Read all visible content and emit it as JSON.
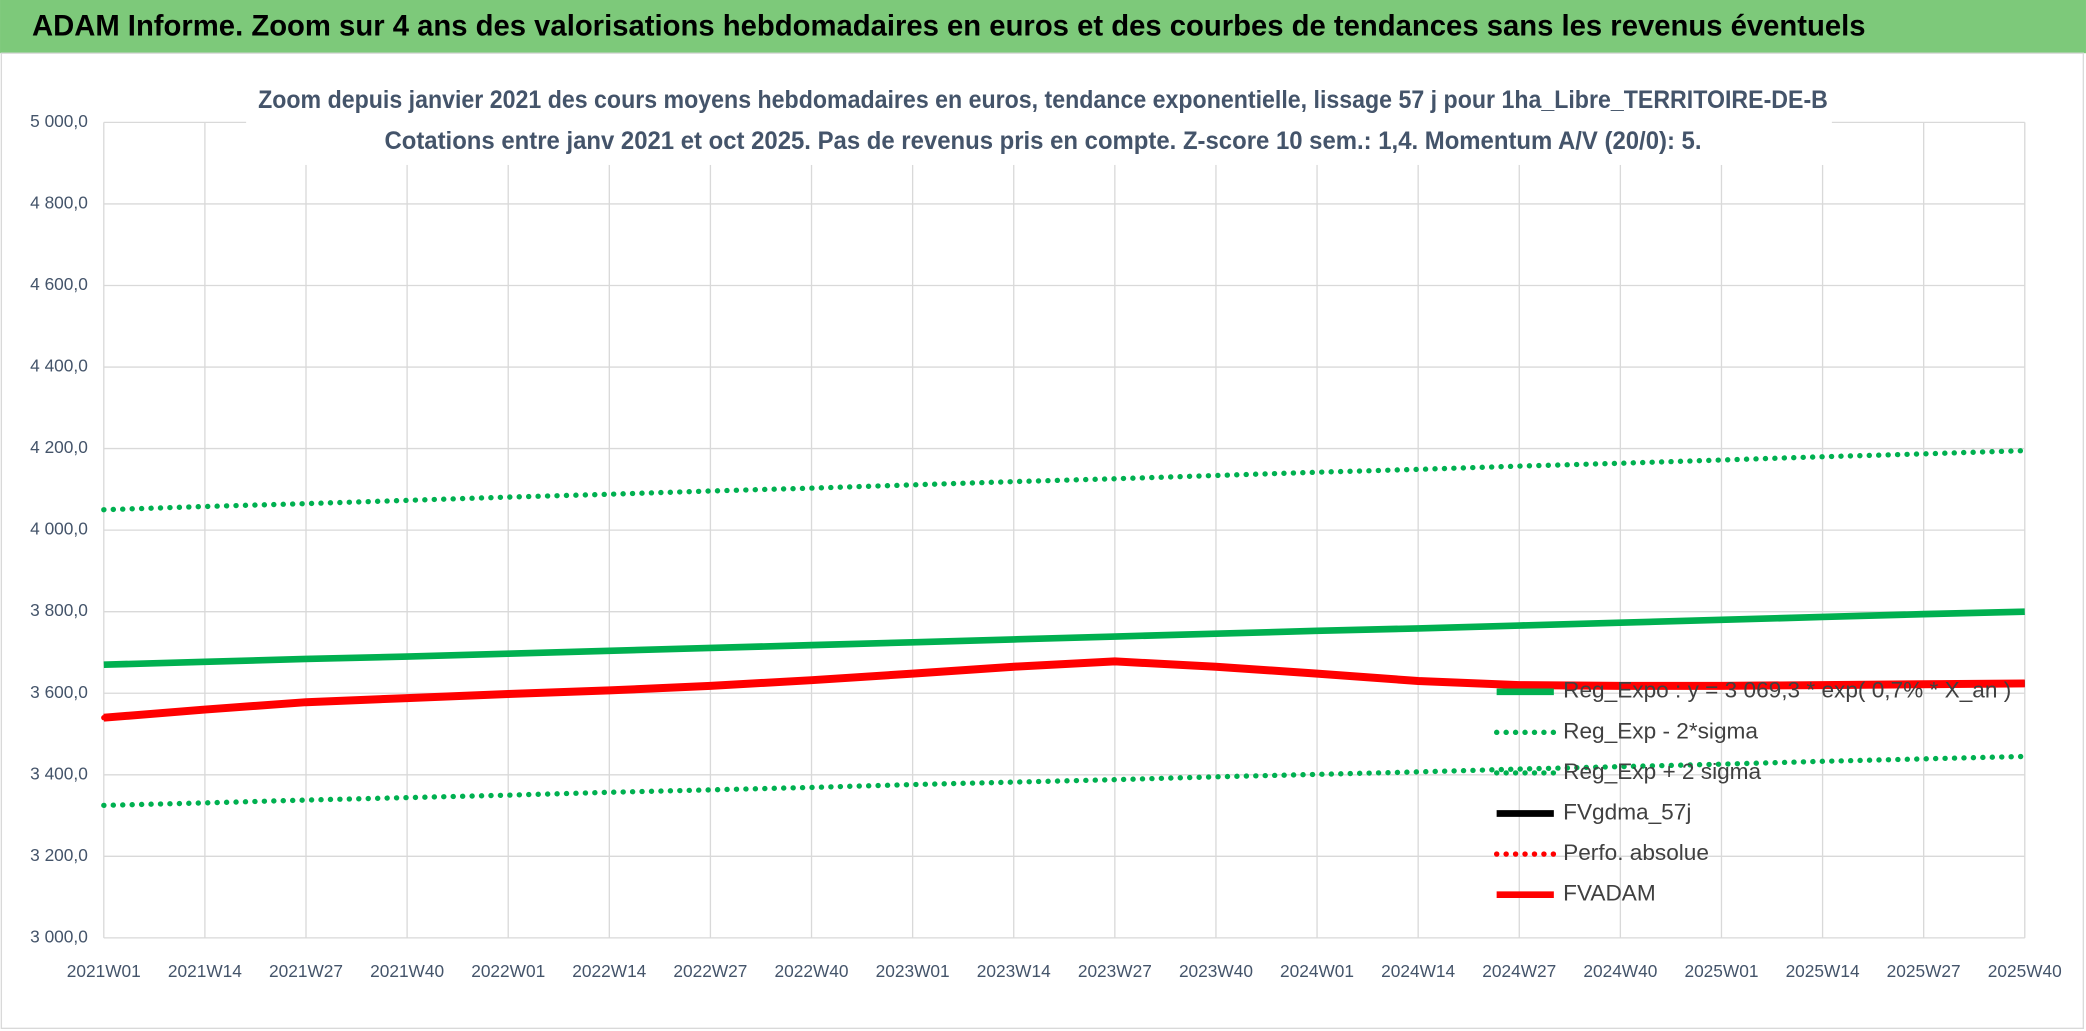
{
  "header": {
    "title": "ADAM Informe. Zoom sur 4 ans des valorisations hebdomadaires en euros et des courbes de tendances sans les revenus éventuels"
  },
  "chart_data": {
    "type": "line",
    "title": "Zoom depuis janvier 2021 des cours moyens hebdomadaires en euros, tendance exponentielle, lissage 57 j pour 1ha_Libre_TERRITOIRE-DE-B",
    "subtitle": "Cotations entre janv 2021 et oct 2025. Pas de revenus pris en compte. Z-score 10 sem.: 1,4. Momentum A/V (20/0): 5.",
    "categories": [
      "2021W01",
      "2021W14",
      "2021W27",
      "2021W40",
      "2022W01",
      "2022W14",
      "2022W27",
      "2022W40",
      "2023W01",
      "2023W14",
      "2023W27",
      "2023W40",
      "2024W01",
      "2024W14",
      "2024W27",
      "2024W40",
      "2025W01",
      "2025W14",
      "2025W27",
      "2025W40"
    ],
    "ylim": [
      3000,
      5000
    ],
    "yticks": [
      {
        "value": 3000,
        "label": "3 000,0"
      },
      {
        "value": 3200,
        "label": "3 200,0"
      },
      {
        "value": 3400,
        "label": "3 400,0"
      },
      {
        "value": 3600,
        "label": "3 600,0"
      },
      {
        "value": 3800,
        "label": "3 800,0"
      },
      {
        "value": 4000,
        "label": "4 000,0"
      },
      {
        "value": 4200,
        "label": "4 200,0"
      },
      {
        "value": 4400,
        "label": "4 400,0"
      },
      {
        "value": 4600,
        "label": "4 600,0"
      },
      {
        "value": 4800,
        "label": "4 800,0"
      },
      {
        "value": 5000,
        "label": "5 000,0"
      }
    ],
    "grid": true,
    "legend": "right",
    "series": [
      {
        "name": "Reg_Expo : y = 3 069,3 * exp( 0,7% * X_an )",
        "color": "#00b050",
        "dash": "solid",
        "values": [
          3670,
          3677,
          3684,
          3690,
          3697,
          3704,
          3711,
          3718,
          3725,
          3732,
          3739,
          3746,
          3753,
          3759,
          3766,
          3773,
          3780,
          3787,
          3794,
          3800
        ]
      },
      {
        "name": "Reg_Exp - 2*sigma",
        "color": "#00b050",
        "dash": "dotted",
        "values": [
          3325,
          3331,
          3338,
          3344,
          3350,
          3357,
          3363,
          3369,
          3376,
          3382,
          3388,
          3395,
          3401,
          3407,
          3414,
          3420,
          3426,
          3433,
          3439,
          3445
        ]
      },
      {
        "name": "Reg_Exp + 2 sigma",
        "color": "#00b050",
        "dash": "dotted",
        "values": [
          4050,
          4058,
          4065,
          4073,
          4081,
          4088,
          4096,
          4103,
          4111,
          4119,
          4126,
          4134,
          4142,
          4149,
          4157,
          4164,
          4172,
          4180,
          4187,
          4195
        ]
      },
      {
        "name": "FVgdma_57j",
        "color": "#000000",
        "dash": "solid",
        "values": [
          3540,
          3560,
          3578,
          3588,
          3598,
          3607,
          3618,
          3632,
          3648,
          3665,
          3678,
          3665,
          3648,
          3630,
          3620,
          3618,
          3618,
          3620,
          3622,
          3624
        ]
      },
      {
        "name": "Perfo. absolue",
        "color": "#ff0000",
        "dash": "dotted",
        "values": [
          3540,
          3560,
          3578,
          3588,
          3598,
          3607,
          3618,
          3632,
          3648,
          3665,
          3678,
          3665,
          3648,
          3630,
          3620,
          3618,
          3618,
          3620,
          3622,
          3624
        ]
      },
      {
        "name": "FVADAM",
        "color": "#ff0000",
        "dash": "solid",
        "values": [
          3540,
          3560,
          3578,
          3588,
          3598,
          3607,
          3618,
          3632,
          3648,
          3665,
          3678,
          3665,
          3648,
          3630,
          3620,
          3618,
          3618,
          3620,
          3622,
          3624
        ]
      }
    ]
  }
}
